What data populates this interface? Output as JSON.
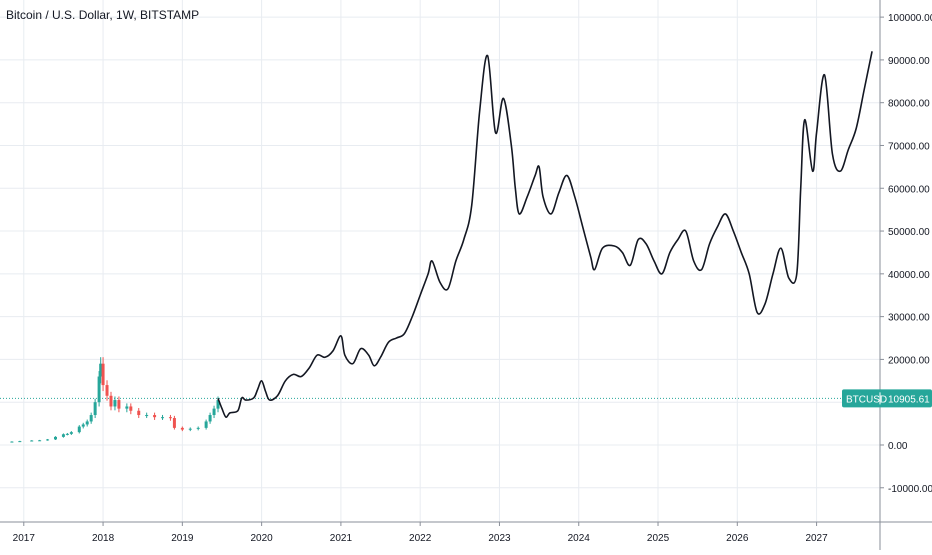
{
  "symbol": {
    "title": "Bitcoin / U.S. Dollar, 1W, BITSTAMP",
    "badge_label": "BTCUSD",
    "badge_value": "10905.61",
    "badge_color": "#26a69a"
  },
  "chart_data": {
    "type": "line",
    "title": "Bitcoin / U.S. Dollar, 1W, BITSTAMP",
    "xlabel": "",
    "ylabel": "",
    "x_ticks": [
      "2017",
      "2018",
      "2019",
      "2020",
      "2021",
      "2022",
      "2023",
      "2024",
      "2025",
      "2026",
      "2027"
    ],
    "y_ticks": [
      "100000.00",
      "90000.00",
      "80000.00",
      "70000.00",
      "60000.00",
      "50000.00",
      "40000.00",
      "30000.00",
      "20000.00",
      "10000.00",
      "0.00",
      "-10000.00"
    ],
    "ylim": [
      -18000,
      104000
    ],
    "xlim": [
      2016.7,
      2027.8
    ],
    "grid": true,
    "last_price": 10905.61,
    "series": [
      {
        "kind": "candles-approx",
        "color_up": "#26a69a",
        "color_down": "#ef5350",
        "points": [
          [
            2016.7,
            700
          ],
          [
            2016.85,
            800
          ],
          [
            2016.95,
            900
          ],
          [
            2017.1,
            1050
          ],
          [
            2017.2,
            1100
          ],
          [
            2017.3,
            1300
          ],
          [
            2017.4,
            1900
          ],
          [
            2017.5,
            2500
          ],
          [
            2017.55,
            2600
          ],
          [
            2017.6,
            3000
          ],
          [
            2017.7,
            4300
          ],
          [
            2017.75,
            4800
          ],
          [
            2017.8,
            5500
          ],
          [
            2017.85,
            7000
          ],
          [
            2017.9,
            10000
          ],
          [
            2017.95,
            16000
          ],
          [
            2017.97,
            19000
          ],
          [
            2018.0,
            14000
          ],
          [
            2018.05,
            11500
          ],
          [
            2018.1,
            9000
          ],
          [
            2018.15,
            10500
          ],
          [
            2018.2,
            8500
          ],
          [
            2018.3,
            9000
          ],
          [
            2018.35,
            8000
          ],
          [
            2018.45,
            7000
          ],
          [
            2018.55,
            7000
          ],
          [
            2018.65,
            6500
          ],
          [
            2018.75,
            6500
          ],
          [
            2018.85,
            6300
          ],
          [
            2018.9,
            4000
          ],
          [
            2019.0,
            3600
          ],
          [
            2019.1,
            3800
          ],
          [
            2019.2,
            4000
          ],
          [
            2019.3,
            5500
          ],
          [
            2019.35,
            7000
          ],
          [
            2019.4,
            8500
          ],
          [
            2019.45,
            10500
          ]
        ]
      },
      {
        "kind": "projection-line",
        "color": "#131722",
        "points": [
          [
            2019.45,
            10900
          ],
          [
            2019.5,
            8500
          ],
          [
            2019.55,
            6500
          ],
          [
            2019.6,
            7500
          ],
          [
            2019.7,
            8000
          ],
          [
            2019.75,
            11000
          ],
          [
            2019.8,
            10500
          ],
          [
            2019.9,
            11000
          ],
          [
            2019.95,
            13000
          ],
          [
            2020.0,
            15000
          ],
          [
            2020.05,
            12500
          ],
          [
            2020.1,
            10500
          ],
          [
            2020.2,
            11500
          ],
          [
            2020.3,
            15000
          ],
          [
            2020.4,
            16500
          ],
          [
            2020.5,
            16000
          ],
          [
            2020.6,
            18000
          ],
          [
            2020.7,
            21000
          ],
          [
            2020.8,
            20500
          ],
          [
            2020.9,
            22000
          ],
          [
            2021.0,
            25500
          ],
          [
            2021.05,
            21000
          ],
          [
            2021.15,
            19000
          ],
          [
            2021.25,
            22500
          ],
          [
            2021.35,
            21000
          ],
          [
            2021.42,
            18500
          ],
          [
            2021.5,
            20500
          ],
          [
            2021.6,
            24000
          ],
          [
            2021.7,
            25000
          ],
          [
            2021.8,
            26000
          ],
          [
            2021.9,
            30000
          ],
          [
            2022.0,
            35000
          ],
          [
            2022.1,
            40000
          ],
          [
            2022.15,
            43000
          ],
          [
            2022.25,
            38000
          ],
          [
            2022.35,
            36500
          ],
          [
            2022.45,
            43000
          ],
          [
            2022.55,
            48000
          ],
          [
            2022.65,
            56000
          ],
          [
            2022.75,
            78000
          ],
          [
            2022.85,
            91000
          ],
          [
            2022.95,
            73000
          ],
          [
            2023.05,
            81000
          ],
          [
            2023.15,
            70000
          ],
          [
            2023.2,
            60000
          ],
          [
            2023.25,
            54000
          ],
          [
            2023.35,
            58000
          ],
          [
            2023.45,
            63000
          ],
          [
            2023.5,
            65000
          ],
          [
            2023.55,
            58000
          ],
          [
            2023.65,
            54000
          ],
          [
            2023.75,
            59000
          ],
          [
            2023.85,
            63000
          ],
          [
            2023.95,
            58000
          ],
          [
            2024.05,
            51000
          ],
          [
            2024.15,
            44000
          ],
          [
            2024.2,
            41000
          ],
          [
            2024.3,
            46000
          ],
          [
            2024.45,
            46500
          ],
          [
            2024.55,
            45000
          ],
          [
            2024.65,
            42000
          ],
          [
            2024.75,
            48000
          ],
          [
            2024.85,
            47000
          ],
          [
            2024.95,
            43000
          ],
          [
            2025.05,
            40000
          ],
          [
            2025.15,
            45000
          ],
          [
            2025.25,
            48000
          ],
          [
            2025.35,
            50000
          ],
          [
            2025.45,
            43000
          ],
          [
            2025.55,
            41000
          ],
          [
            2025.65,
            47000
          ],
          [
            2025.75,
            51000
          ],
          [
            2025.85,
            54000
          ],
          [
            2025.95,
            50000
          ],
          [
            2026.05,
            45000
          ],
          [
            2026.15,
            40000
          ],
          [
            2026.25,
            31000
          ],
          [
            2026.35,
            33000
          ],
          [
            2026.45,
            40000
          ],
          [
            2026.55,
            46000
          ],
          [
            2026.65,
            39000
          ],
          [
            2026.75,
            40000
          ],
          [
            2026.8,
            60000
          ],
          [
            2026.85,
            76000
          ],
          [
            2026.95,
            64000
          ],
          [
            2027.0,
            73000
          ],
          [
            2027.1,
            86500
          ],
          [
            2027.2,
            68000
          ],
          [
            2027.3,
            64000
          ],
          [
            2027.4,
            69000
          ],
          [
            2027.5,
            74000
          ],
          [
            2027.6,
            83000
          ],
          [
            2027.7,
            92000
          ]
        ]
      }
    ]
  }
}
